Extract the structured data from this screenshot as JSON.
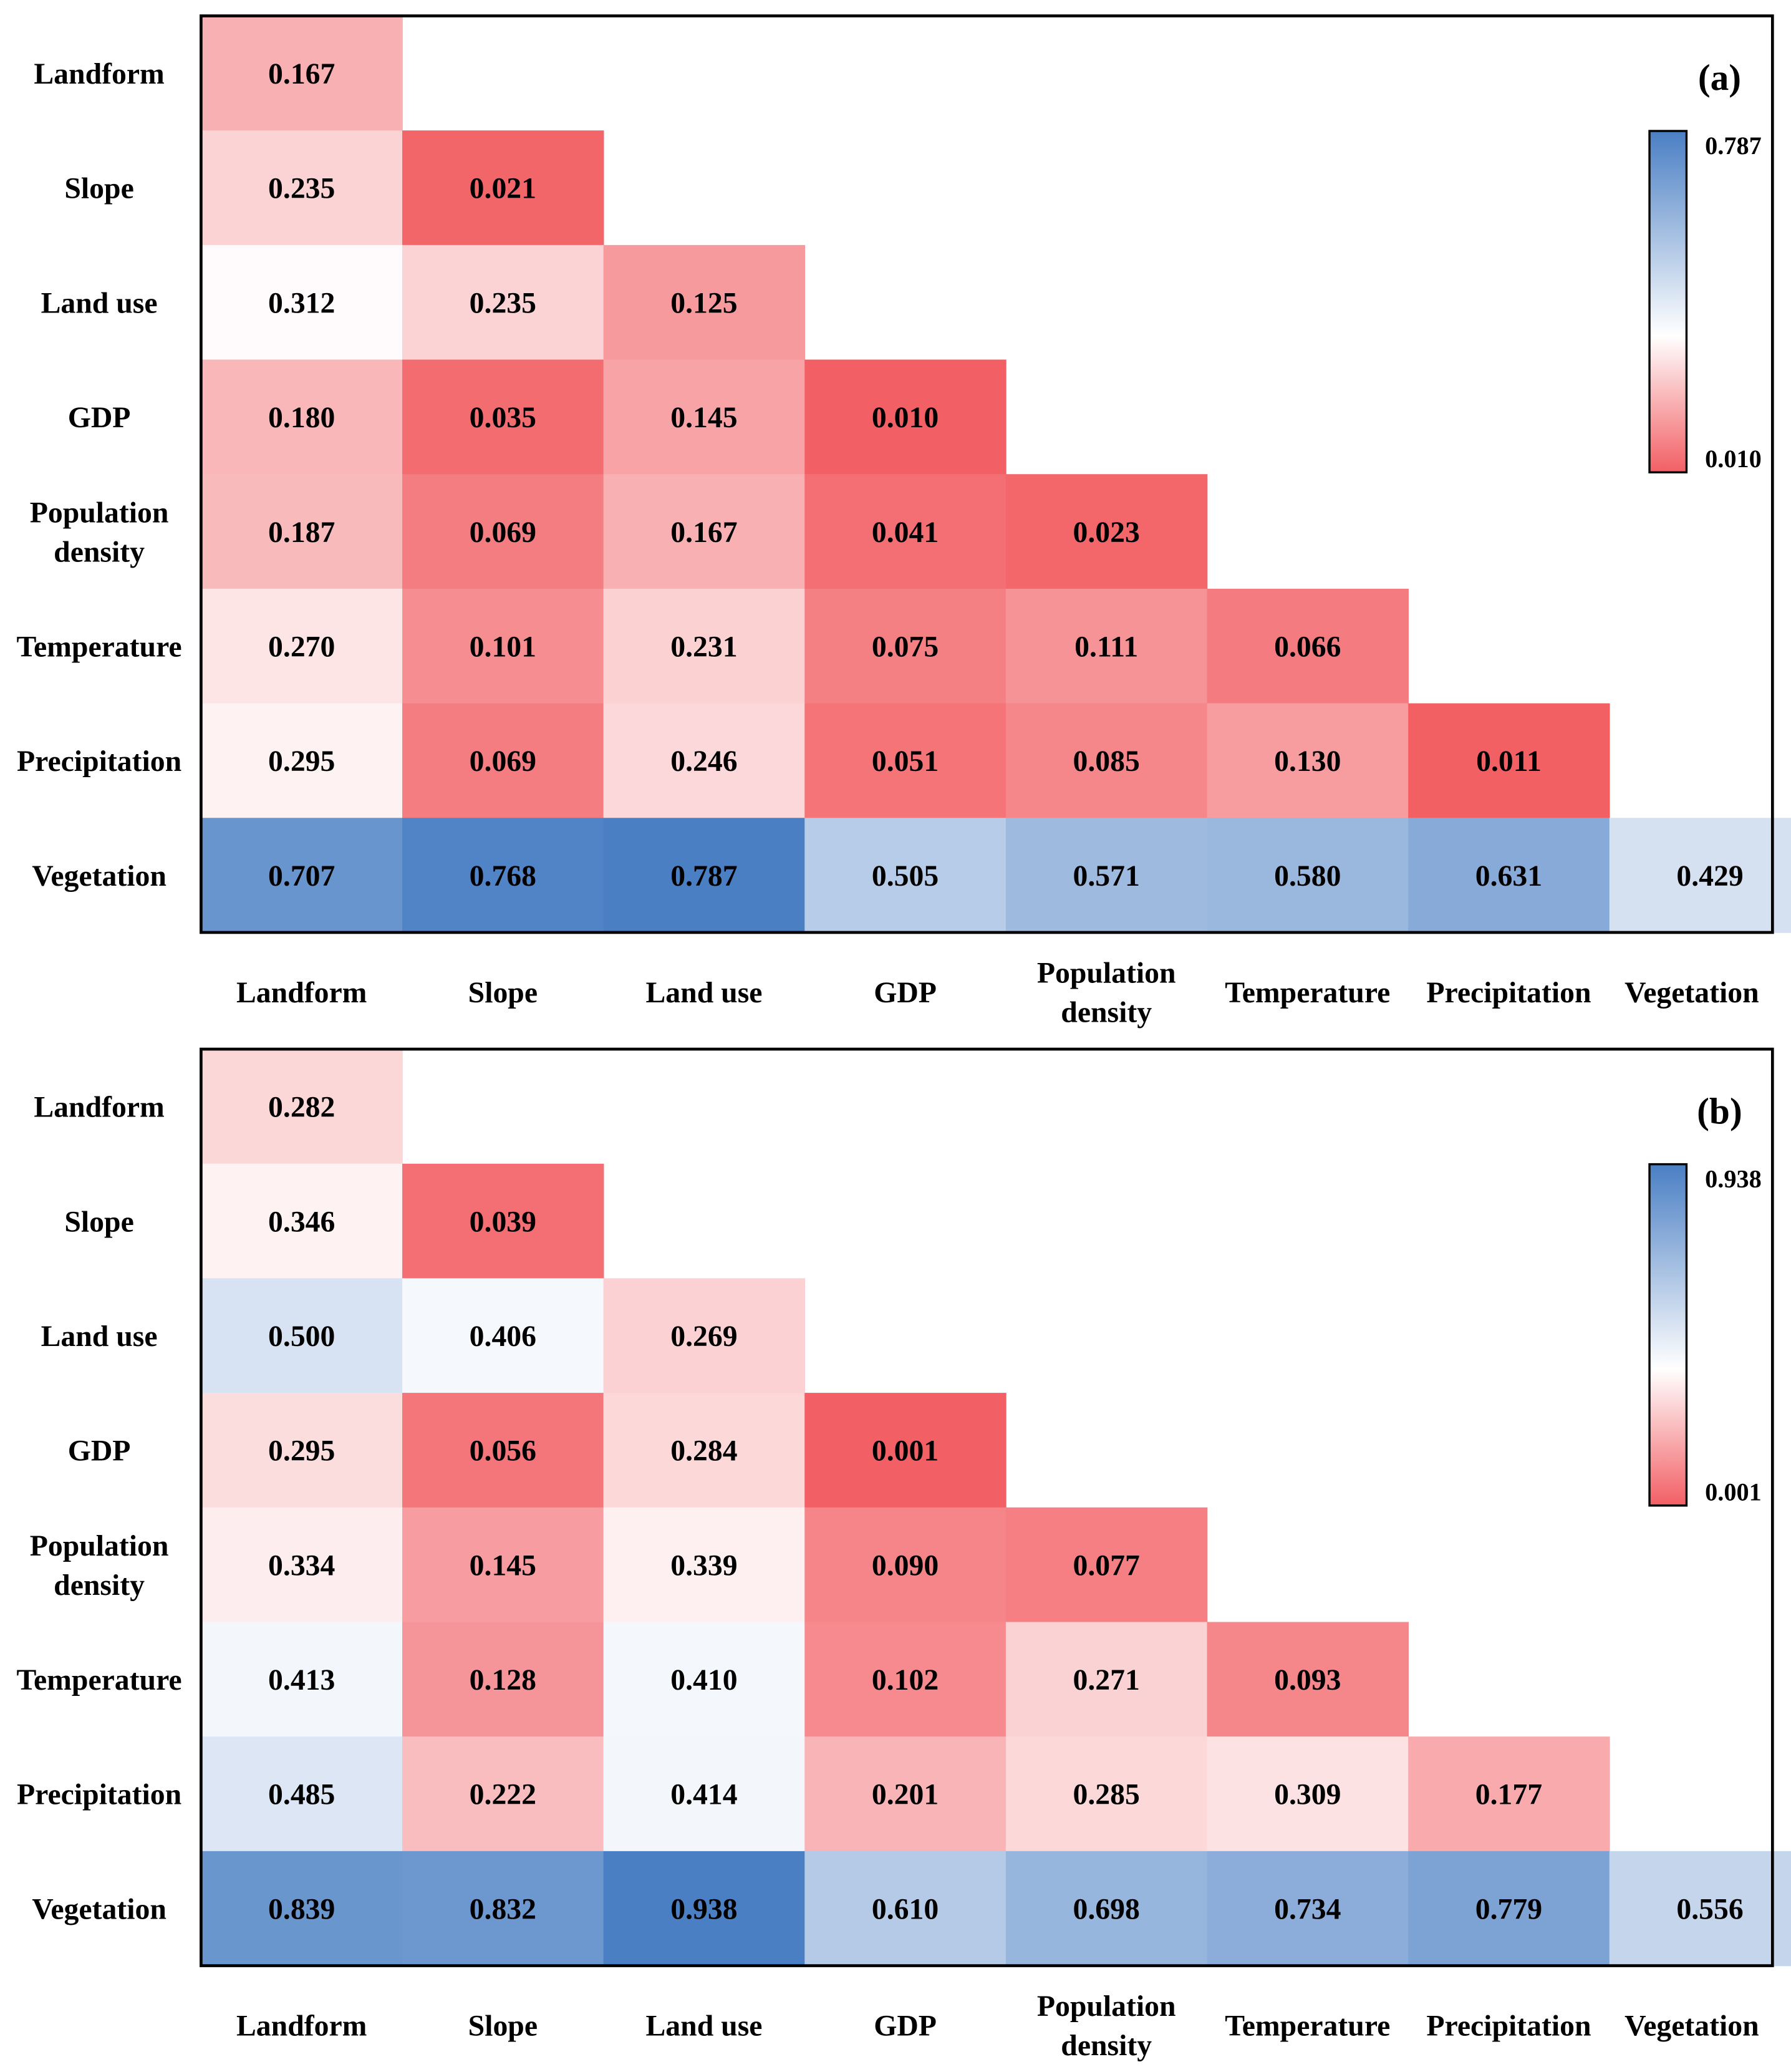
{
  "chart_data": [
    {
      "type": "heatmap",
      "panel_label": "(a)",
      "row_labels": [
        [
          "Landform"
        ],
        [
          "Slope"
        ],
        [
          "Land use"
        ],
        [
          "GDP"
        ],
        [
          "Population",
          "density"
        ],
        [
          "Temperature"
        ],
        [
          "Precipitation"
        ],
        [
          "Vegetation"
        ]
      ],
      "col_labels": [
        [
          "Landform"
        ],
        [
          "Slope"
        ],
        [
          "Land use"
        ],
        [
          "GDP"
        ],
        [
          "Population",
          "density"
        ],
        [
          "Temperature"
        ],
        [
          "Precipitation"
        ],
        [
          "Vegetation"
        ]
      ],
      "values": [
        [
          "0.167"
        ],
        [
          "0.235",
          "0.021"
        ],
        [
          "0.312",
          "0.235",
          "0.125"
        ],
        [
          "0.180",
          "0.035",
          "0.145",
          "0.010"
        ],
        [
          "0.187",
          "0.069",
          "0.167",
          "0.041",
          "0.023"
        ],
        [
          "0.270",
          "0.101",
          "0.231",
          "0.075",
          "0.111",
          "0.066"
        ],
        [
          "0.295",
          "0.069",
          "0.246",
          "0.051",
          "0.085",
          "0.130",
          "0.011"
        ],
        [
          "0.707",
          "0.768",
          "0.787",
          "0.505",
          "0.571",
          "0.580",
          "0.631",
          "0.429"
        ]
      ],
      "colorbar": {
        "max_label": "0.787",
        "min_label": "0.010",
        "max": 0.787,
        "min": 0.01,
        "high_color": "#4a7fc4",
        "mid_color": "#ffffff",
        "low_color": "#f25f64"
      }
    },
    {
      "type": "heatmap",
      "panel_label": "(b)",
      "row_labels": [
        [
          "Landform"
        ],
        [
          "Slope"
        ],
        [
          "Land use"
        ],
        [
          "GDP"
        ],
        [
          "Population",
          "density"
        ],
        [
          "Temperature"
        ],
        [
          "Precipitation"
        ],
        [
          "Vegetation"
        ]
      ],
      "col_labels": [
        [
          "Landform"
        ],
        [
          "Slope"
        ],
        [
          "Land use"
        ],
        [
          "GDP"
        ],
        [
          "Population",
          "density"
        ],
        [
          "Temperature"
        ],
        [
          "Precipitation"
        ],
        [
          "Vegetation"
        ]
      ],
      "values": [
        [
          "0.282"
        ],
        [
          "0.346",
          "0.039"
        ],
        [
          "0.500",
          "0.406",
          "0.269"
        ],
        [
          "0.295",
          "0.056",
          "0.284",
          "0.001"
        ],
        [
          "0.334",
          "0.145",
          "0.339",
          "0.090",
          "0.077"
        ],
        [
          "0.413",
          "0.128",
          "0.410",
          "0.102",
          "0.271",
          "0.093"
        ],
        [
          "0.485",
          "0.222",
          "0.414",
          "0.201",
          "0.285",
          "0.309",
          "0.177"
        ],
        [
          "0.839",
          "0.832",
          "0.938",
          "0.610",
          "0.698",
          "0.734",
          "0.779",
          "0.556"
        ]
      ],
      "colorbar": {
        "max_label": "0.938",
        "min_label": "0.001",
        "max": 0.938,
        "min": 0.001,
        "high_color": "#4a7fc4",
        "mid_color": "#ffffff",
        "low_color": "#f25f64"
      }
    }
  ]
}
